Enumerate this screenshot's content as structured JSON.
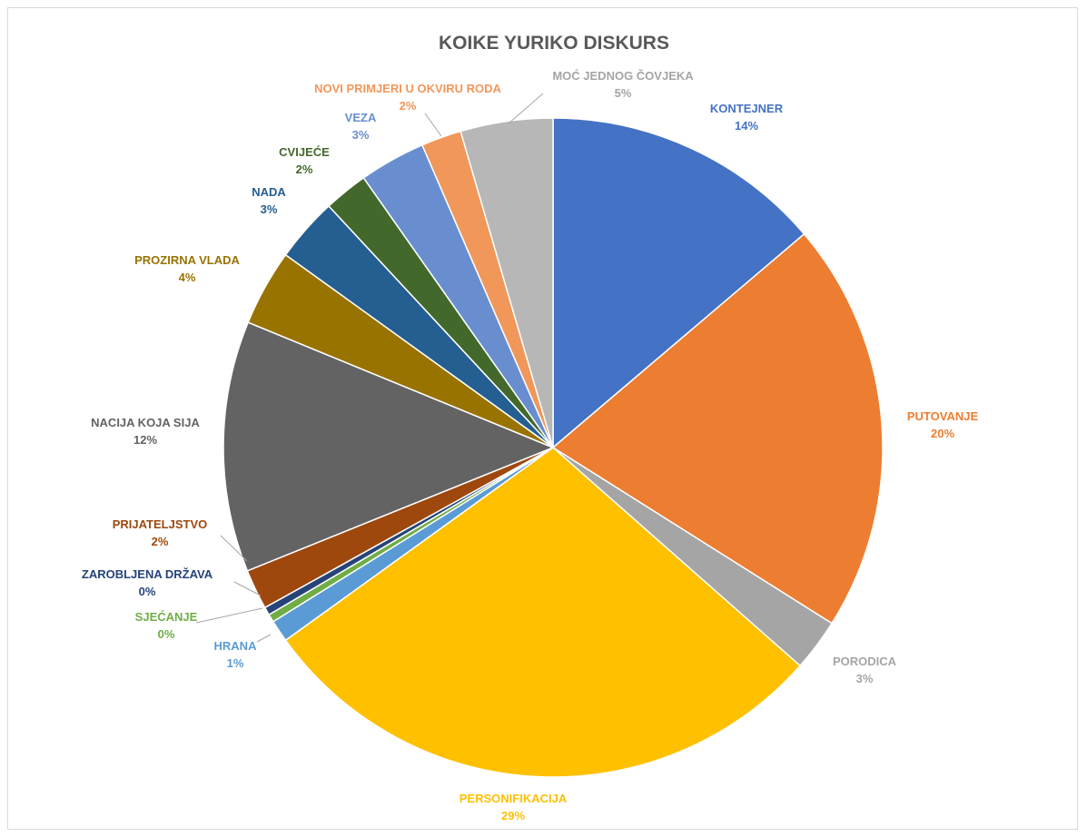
{
  "chart_data": {
    "type": "pie",
    "title": "KOIKE YURIKO DISKURS",
    "slices": [
      {
        "name": "KONTEJNER",
        "value": 14,
        "label_value": "14%",
        "color": "#4472C4"
      },
      {
        "name": "PUTOVANJE",
        "value": 20.5,
        "label_value": "20%",
        "color": "#ED7D31"
      },
      {
        "name": "PORODICA",
        "value": 2.6,
        "label_value": "3%",
        "color": "#A5A5A5"
      },
      {
        "name": "PERSONIFIKACIJA",
        "value": 29,
        "label_value": "29%",
        "color": "#FFC000"
      },
      {
        "name": "HRANA",
        "value": 1.1,
        "label_value": "1%",
        "color": "#5B9BD5"
      },
      {
        "name": "SJEĆANJE",
        "value": 0.4,
        "label_value": "0%",
        "color": "#70AD47"
      },
      {
        "name": "ZAROBLJENA DRŽAVA",
        "value": 0.4,
        "label_value": "0%",
        "color": "#264478"
      },
      {
        "name": "PRIJATELJSTVO",
        "value": 2,
        "label_value": "2%",
        "color": "#9E480E"
      },
      {
        "name": "NACIJA KOJA SIJA",
        "value": 12.5,
        "label_value": "12%",
        "color": "#636363"
      },
      {
        "name": "PROZIRNA VLADA",
        "value": 3.8,
        "label_value": "4%",
        "color": "#997300"
      },
      {
        "name": "NADA",
        "value": 3.2,
        "label_value": "3%",
        "color": "#255E91"
      },
      {
        "name": "CVIJEĆE",
        "value": 2.2,
        "label_value": "2%",
        "color": "#43682B"
      },
      {
        "name": "VEZA",
        "value": 3.3,
        "label_value": "3%",
        "color": "#698ED0"
      },
      {
        "name": "NOVI PRIMJERI U OKVIRU RODA",
        "value": 2,
        "label_value": "2%",
        "color": "#F1975A"
      },
      {
        "name": "MOĆ JEDNOG ČOVJEKA",
        "value": 4.6,
        "label_value": "5%",
        "color": "#B7B7B7"
      }
    ],
    "label_colors": {
      "KONTEJNER": "#4472C4",
      "PUTOVANJE": "#ED7D31",
      "PORODICA": "#A5A5A5",
      "PERSONIFIKACIJA": "#FFC000",
      "HRANA": "#5B9BD5",
      "SJEĆANJE": "#70AD47",
      "ZAROBLJENA DRŽAVA": "#264478",
      "PRIJATELJSTVO": "#9E480E",
      "NACIJA KOJA SIJA": "#636363",
      "PROZIRNA VLADA": "#997300",
      "NADA": "#255E91",
      "CVIJEĆE": "#43682B",
      "VEZA": "#698ED0",
      "NOVI PRIMJERI U OKVIRU RODA": "#F1975A",
      "MOĆ JEDNOG ČOVJEKA": "#A5A5A5"
    },
    "legend": "none"
  }
}
